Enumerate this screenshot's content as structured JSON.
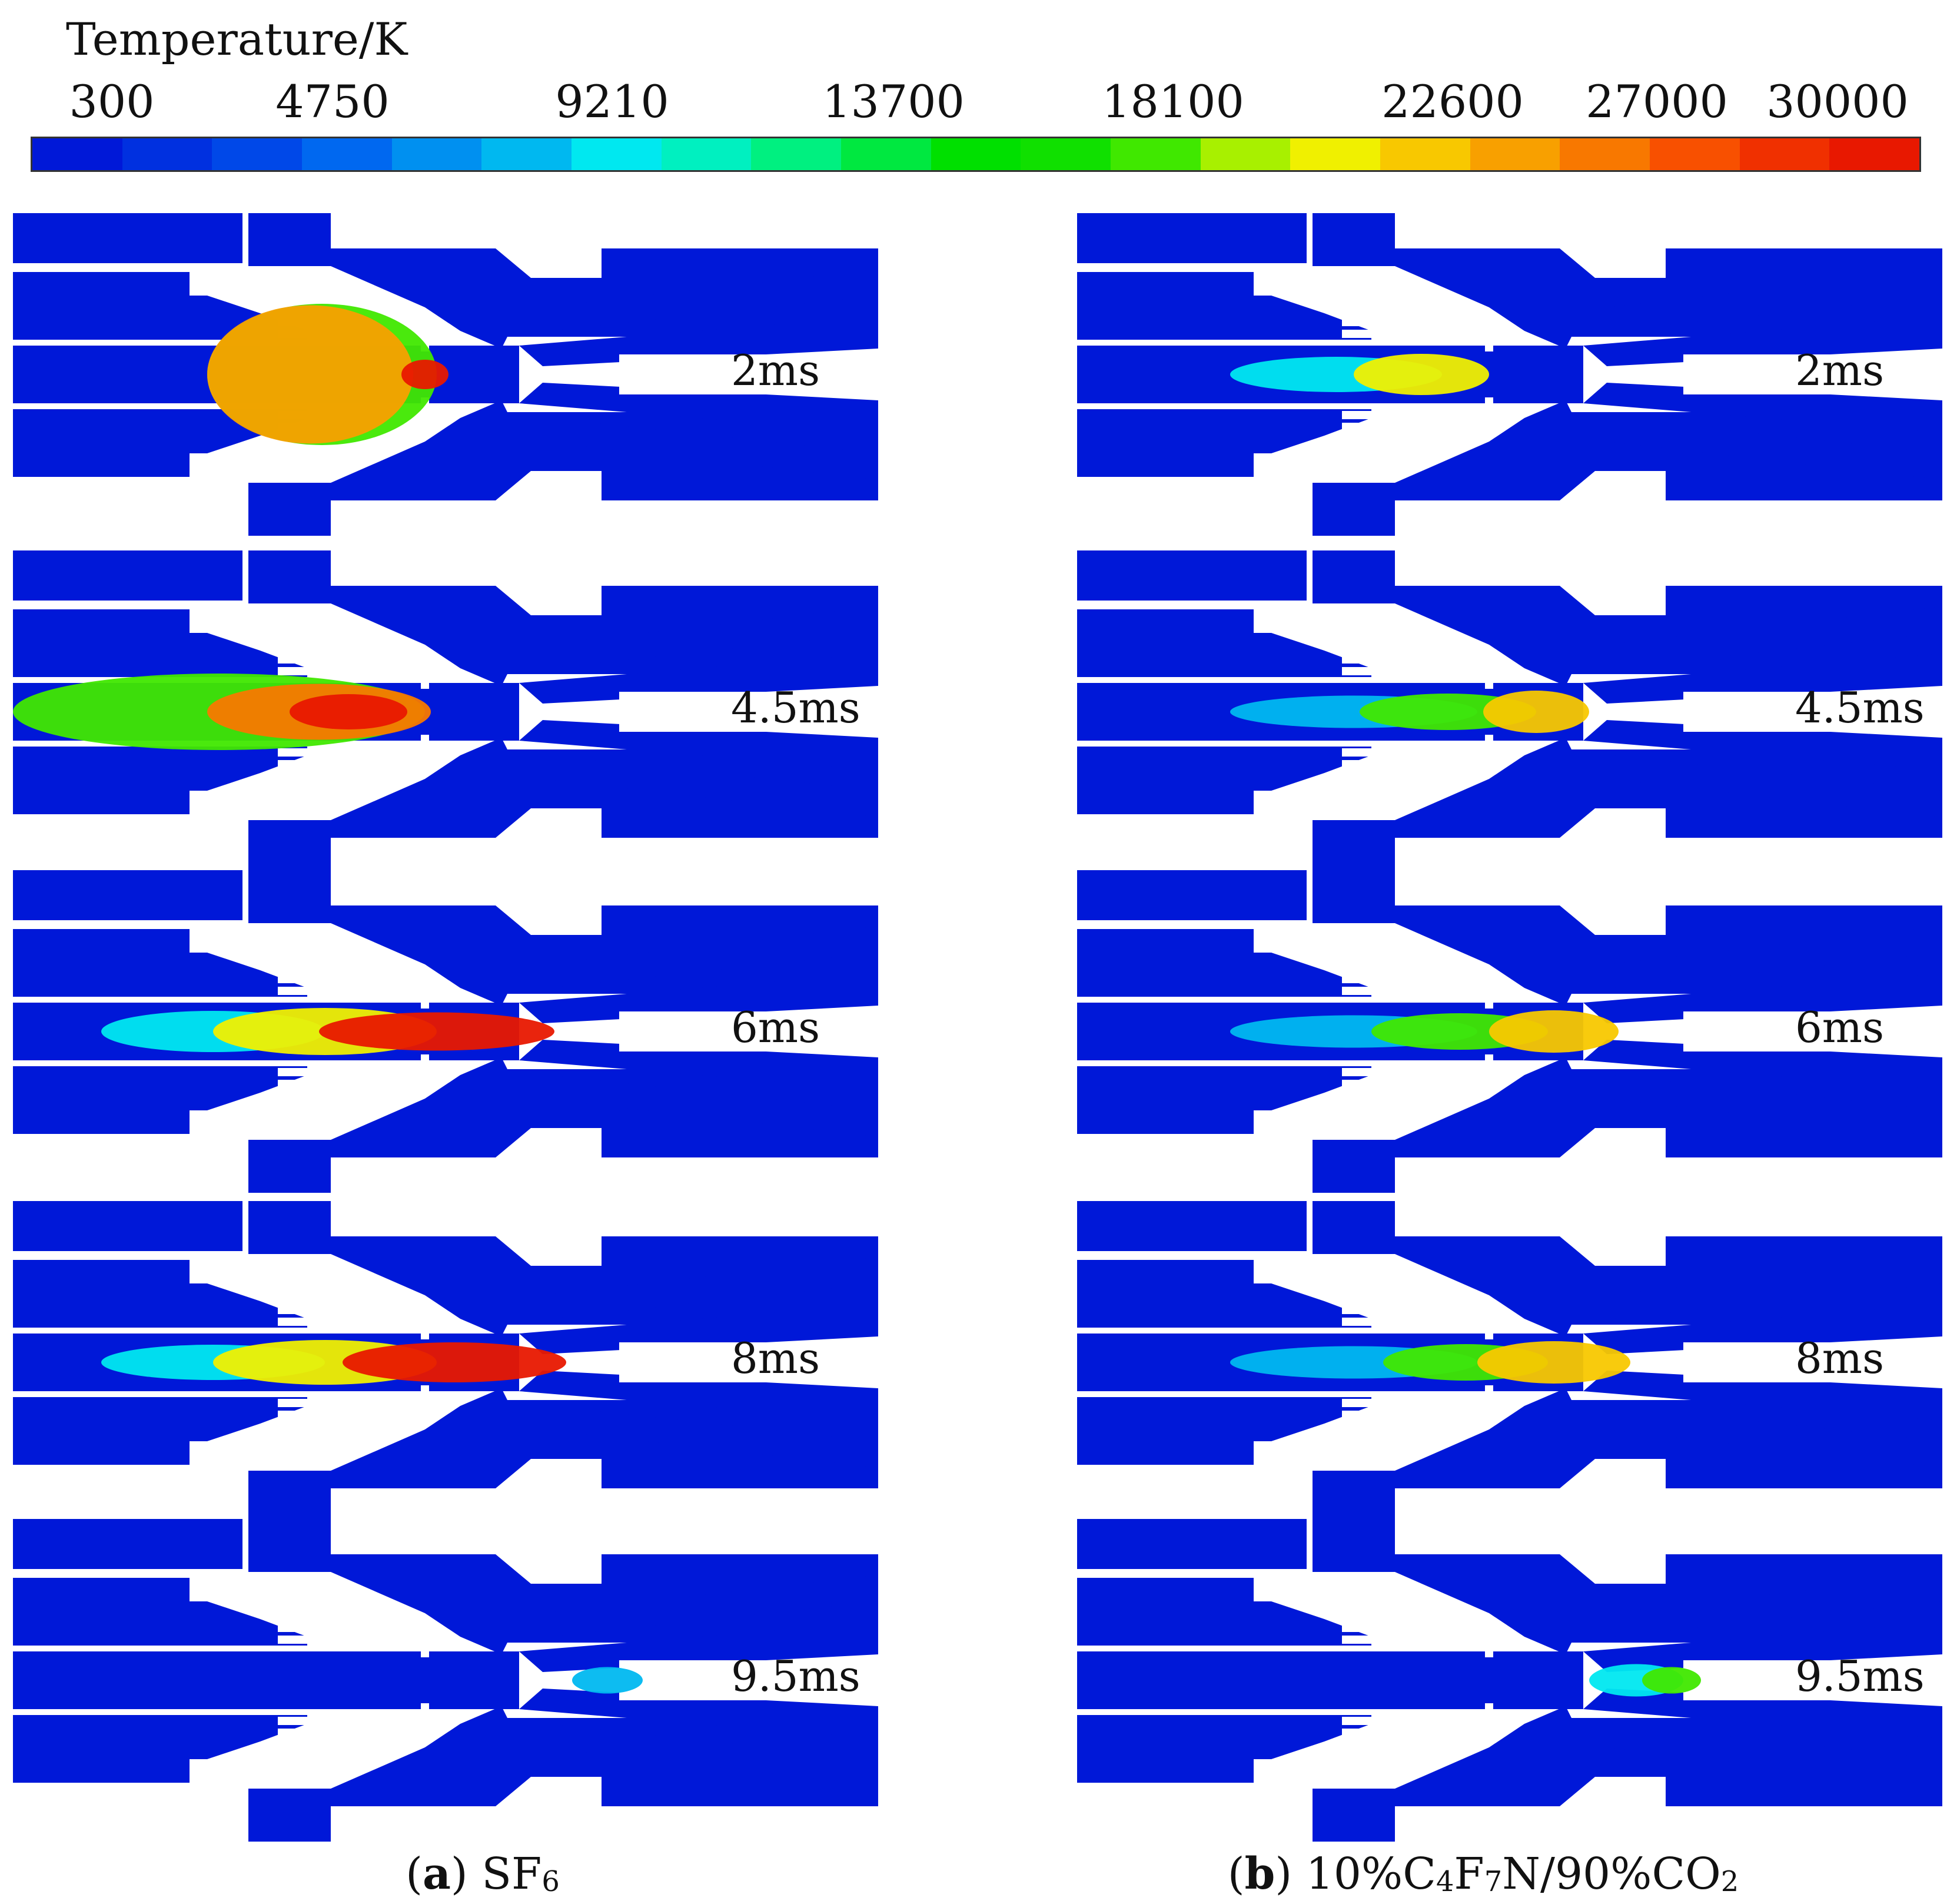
{
  "legend": {
    "title": "Temperature/K",
    "ticks": [
      "300",
      "4750",
      "9210",
      "13700",
      "18100",
      "22600",
      "27000",
      "30000"
    ],
    "colors": [
      "#0018d8",
      "#0030e0",
      "#0048e8",
      "#0068f0",
      "#0090f0",
      "#00b8f0",
      "#00e8f0",
      "#00f0c0",
      "#00f080",
      "#00e840",
      "#00e000",
      "#10e000",
      "#40e800",
      "#a8f000",
      "#f0f000",
      "#f8c800",
      "#f8a000",
      "#f87800",
      "#f85000",
      "#f03000",
      "#e81800"
    ]
  },
  "columns": [
    {
      "caption_letter": "a",
      "caption_pre": "(",
      "caption_post": ")",
      "caption_text": "SF",
      "caption_sub": "6",
      "panels": [
        {
          "time": "2ms"
        },
        {
          "time": "4.5ms"
        },
        {
          "time": "6ms"
        },
        {
          "time": "8ms"
        },
        {
          "time": "9.5ms"
        }
      ]
    },
    {
      "caption_letter": "b",
      "caption_pre": "(",
      "caption_post": ")",
      "caption_text_parts": [
        "10%C",
        "4",
        "F",
        "7",
        "N/90%CO",
        "2"
      ],
      "panels": [
        {
          "time": "2ms"
        },
        {
          "time": "4.5ms"
        },
        {
          "time": "6ms"
        },
        {
          "time": "8ms"
        },
        {
          "time": "9.5ms"
        }
      ]
    }
  ]
}
